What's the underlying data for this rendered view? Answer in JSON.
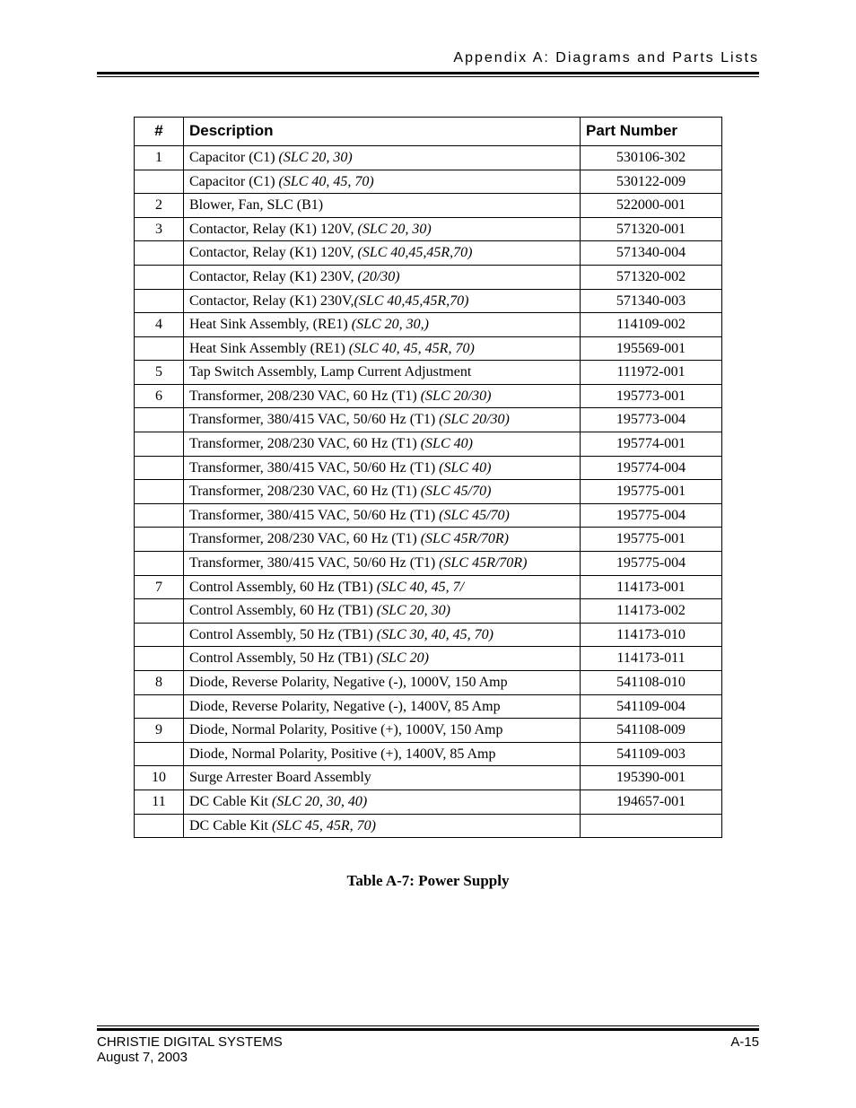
{
  "header": {
    "title": "Appendix A: Diagrams and Parts Lists"
  },
  "table": {
    "headers": {
      "num": "#",
      "desc": "Description",
      "part": "Part Number"
    },
    "rows": [
      {
        "num": "1",
        "desc_plain": "Capacitor (C1) ",
        "desc_italic": "(SLC 20, 30)",
        "part": "530106-302"
      },
      {
        "num": "",
        "desc_plain": "Capacitor (C1) ",
        "desc_italic": "(SLC 40, 45, 70)",
        "part": "530122-009"
      },
      {
        "num": "2",
        "desc_plain": "Blower, Fan, SLC (B1)",
        "desc_italic": "",
        "part": "522000-001"
      },
      {
        "num": "3",
        "desc_plain": "Contactor, Relay (K1) 120V, ",
        "desc_italic": "(SLC 20, 30)",
        "part": "571320-001"
      },
      {
        "num": "",
        "desc_plain": "Contactor, Relay (K1) 120V, ",
        "desc_italic": "(SLC 40,45,45R,70)",
        "part": "571340-004"
      },
      {
        "num": "",
        "desc_plain": "Contactor, Relay (K1) 230V, ",
        "desc_italic": "(20/30)",
        "part": "571320-002"
      },
      {
        "num": "",
        "desc_plain": "Contactor, Relay (K1) 230V,",
        "desc_italic": "(SLC 40,45,45R,70)",
        "part": "571340-003"
      },
      {
        "num": "4",
        "desc_plain": "Heat Sink Assembly, (RE1) ",
        "desc_italic": "(SLC 20, 30,)",
        "part": "114109-002"
      },
      {
        "num": "",
        "desc_plain": "Heat Sink Assembly (RE1) ",
        "desc_italic": "(SLC 40, 45, 45R, 70)",
        "part": "195569-001"
      },
      {
        "num": "5",
        "desc_plain": "Tap Switch Assembly, Lamp Current Adjustment",
        "desc_italic": "",
        "part": "111972-001"
      },
      {
        "num": "6",
        "desc_plain": "Transformer, 208/230 VAC, 60 Hz (T1) ",
        "desc_italic": "(SLC 20/30)",
        "part": "195773-001"
      },
      {
        "num": "",
        "desc_plain": "Transformer, 380/415 VAC, 50/60 Hz (T1) ",
        "desc_italic": "(SLC 20/30)",
        "part": "195773-004"
      },
      {
        "num": "",
        "desc_plain": "Transformer, 208/230 VAC, 60 Hz (T1) ",
        "desc_italic": "(SLC 40)",
        "part": "195774-001"
      },
      {
        "num": "",
        "desc_plain": "Transformer, 380/415 VAC, 50/60 Hz (T1) ",
        "desc_italic": "(SLC 40)",
        "part": "195774-004"
      },
      {
        "num": "",
        "desc_plain": "Transformer, 208/230 VAC, 60 Hz (T1) ",
        "desc_italic": "(SLC 45/70)",
        "part": "195775-001"
      },
      {
        "num": "",
        "desc_plain": "Transformer, 380/415 VAC, 50/60 Hz (T1) ",
        "desc_italic": "(SLC 45/70)",
        "part": "195775-004"
      },
      {
        "num": "",
        "desc_plain": "Transformer, 208/230 VAC, 60 Hz (T1) ",
        "desc_italic": "(SLC 45R/70R)",
        "part": "195775-001"
      },
      {
        "num": "",
        "desc_plain": "Transformer, 380/415 VAC, 50/60 Hz (T1) ",
        "desc_italic": "(SLC 45R/70R)",
        "part": "195775-004"
      },
      {
        "num": "7",
        "desc_plain": "Control Assembly, 60 Hz (TB1) ",
        "desc_italic": "(SLC 40, 45, 7/",
        "part": "114173-001"
      },
      {
        "num": "",
        "desc_plain": "Control Assembly, 60 Hz (TB1) ",
        "desc_italic": "(SLC 20, 30)",
        "part": "114173-002"
      },
      {
        "num": "",
        "desc_plain": "Control Assembly, 50 Hz (TB1) ",
        "desc_italic": "(SLC 30, 40, 45, 70)",
        "part": "114173-010"
      },
      {
        "num": "",
        "desc_plain": "Control Assembly, 50 Hz (TB1) ",
        "desc_italic": "(SLC 20)",
        "part": "114173-011"
      },
      {
        "num": "8",
        "desc_plain": "Diode, Reverse Polarity, Negative (-), 1000V, 150 Amp",
        "desc_italic": "",
        "part": "541108-010"
      },
      {
        "num": "",
        "desc_plain": "Diode, Reverse Polarity, Negative (-), 1400V, 85 Amp",
        "desc_italic": "",
        "part": "541109-004"
      },
      {
        "num": "9",
        "desc_plain": "Diode, Normal Polarity, Positive (+), 1000V, 150 Amp",
        "desc_italic": "",
        "part": "541108-009"
      },
      {
        "num": "",
        "desc_plain": "Diode, Normal Polarity, Positive (+), 1400V, 85 Amp",
        "desc_italic": "",
        "part": "541109-003"
      },
      {
        "num": "10",
        "desc_plain": "Surge Arrester Board Assembly",
        "desc_italic": "",
        "part": "195390-001"
      },
      {
        "num": "11",
        "desc_plain": "DC Cable Kit ",
        "desc_italic": "(SLC 20, 30, 40)",
        "part": "194657-001"
      },
      {
        "num": "",
        "desc_plain": "DC Cable Kit ",
        "desc_italic": "(SLC 45, 45R, 70)",
        "part": ""
      }
    ]
  },
  "caption": "Table A-7:  Power Supply",
  "footer": {
    "company": "CHRISTIE DIGITAL SYSTEMS",
    "page": "A-15",
    "date": "August 7, 2003"
  }
}
